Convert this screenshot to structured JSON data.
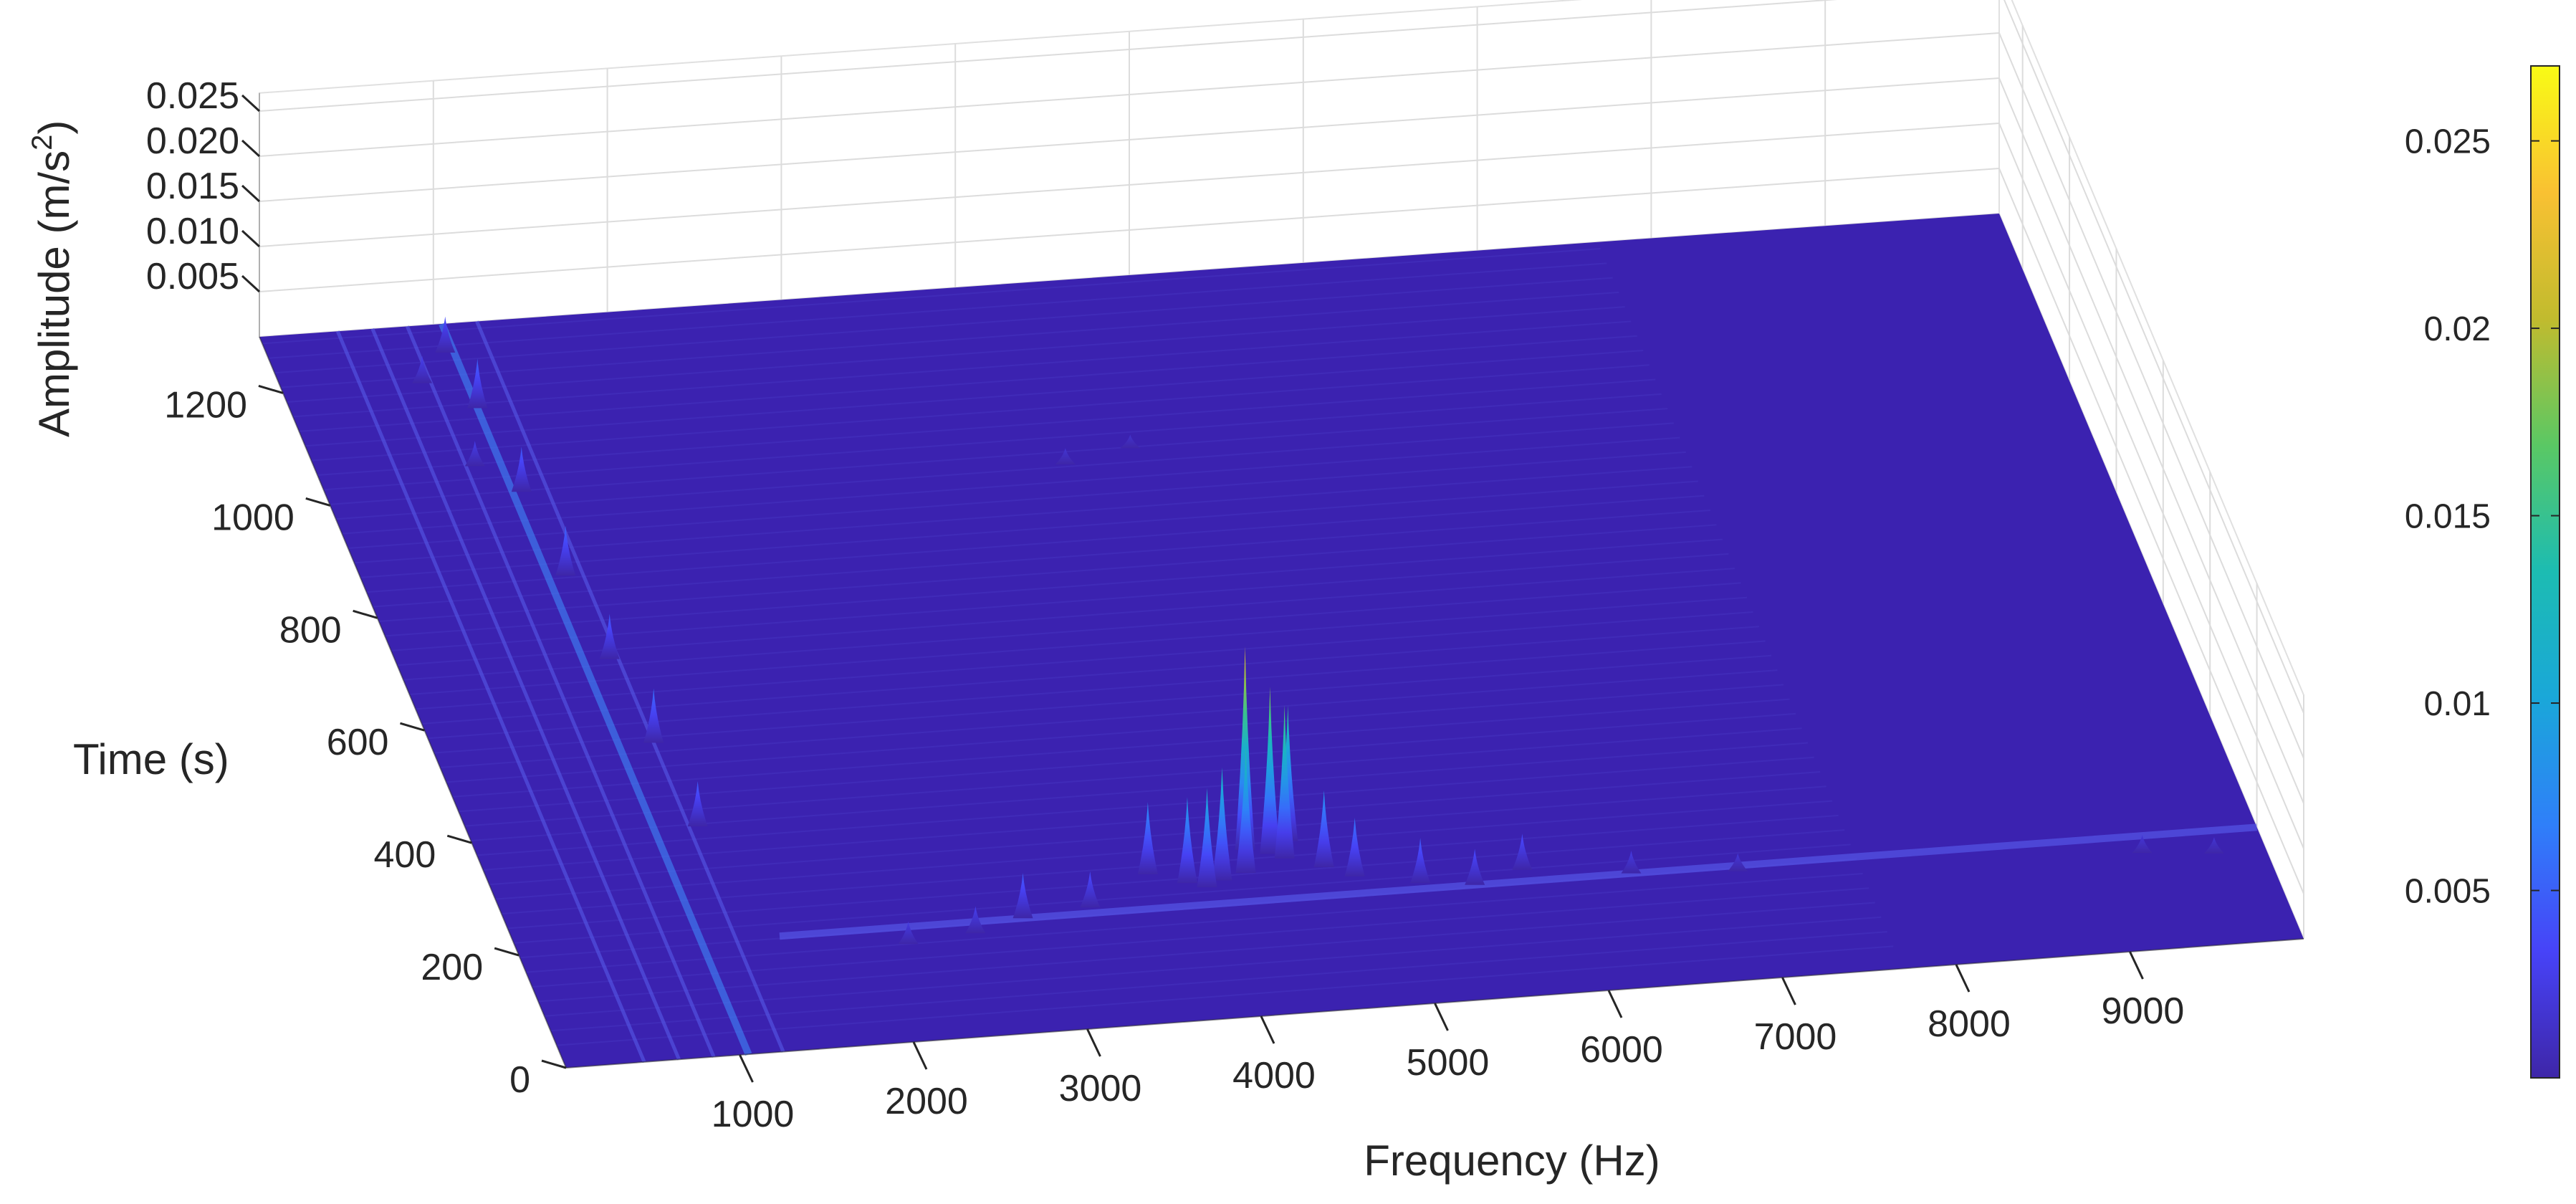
{
  "chart_data": {
    "type": "waterfall-3d",
    "title": "",
    "xlabel": "Frequency (Hz)",
    "ylabel": "Time (s)",
    "zlabel_base": "Amplitude (m/s",
    "zlabel_exp": "2",
    "zlabel_close": ")",
    "x_ticks": [
      "1000",
      "2000",
      "3000",
      "4000",
      "5000",
      "6000",
      "7000",
      "8000",
      "9000"
    ],
    "y_ticks": [
      "0",
      "200",
      "400",
      "600",
      "800",
      "1000",
      "1200"
    ],
    "z_ticks": [
      "0.005",
      "0.010",
      "0.015",
      "0.020",
      "0.025"
    ],
    "xlim": [
      0,
      10000
    ],
    "ylim": [
      0,
      1300
    ],
    "zlim": [
      0,
      0.027
    ],
    "colorbar_ticks": [
      "0.005",
      "0.01",
      "0.015",
      "0.02",
      "0.025"
    ],
    "colorbar_values": [
      0.005,
      0.01,
      0.015,
      0.02,
      0.025
    ],
    "colormap": [
      "#3e26a8",
      "#4743f8",
      "#2f7ff9",
      "#1aa7d9",
      "#1cbcb2",
      "#5ac864",
      "#c1bb2e",
      "#f9c132",
      "#f9fb15"
    ],
    "surface_base_color": "#3b22b0",
    "peaks": [
      {
        "f": 4300,
        "t": 290,
        "a": 0.0225
      },
      {
        "f": 4430,
        "t": 280,
        "a": 0.0185
      },
      {
        "f": 4500,
        "t": 270,
        "a": 0.017
      },
      {
        "f": 4560,
        "t": 300,
        "a": 0.015
      },
      {
        "f": 4250,
        "t": 250,
        "a": 0.014
      },
      {
        "f": 4100,
        "t": 240,
        "a": 0.0125
      },
      {
        "f": 4000,
        "t": 230,
        "a": 0.011
      },
      {
        "f": 3900,
        "t": 240,
        "a": 0.0095
      },
      {
        "f": 4700,
        "t": 250,
        "a": 0.0085
      },
      {
        "f": 3700,
        "t": 260,
        "a": 0.008
      },
      {
        "f": 4850,
        "t": 230,
        "a": 0.0065
      },
      {
        "f": 5200,
        "t": 210,
        "a": 0.005
      },
      {
        "f": 5500,
        "t": 200,
        "a": 0.004
      },
      {
        "f": 5800,
        "t": 220,
        "a": 0.004
      },
      {
        "f": 3300,
        "t": 210,
        "a": 0.004
      },
      {
        "f": 2900,
        "t": 200,
        "a": 0.005
      },
      {
        "f": 2600,
        "t": 180,
        "a": 0.003
      },
      {
        "f": 2200,
        "t": 170,
        "a": 0.0025
      },
      {
        "f": 6400,
        "t": 200,
        "a": 0.0025
      },
      {
        "f": 7000,
        "t": 190,
        "a": 0.002
      },
      {
        "f": 9300,
        "t": 170,
        "a": 0.002
      },
      {
        "f": 9700,
        "t": 160,
        "a": 0.0018
      },
      {
        "f": 1000,
        "t": 1250,
        "a": 0.004
      },
      {
        "f": 1050,
        "t": 1150,
        "a": 0.0055
      },
      {
        "f": 1100,
        "t": 1000,
        "a": 0.005
      },
      {
        "f": 1150,
        "t": 850,
        "a": 0.0055
      },
      {
        "f": 1200,
        "t": 700,
        "a": 0.005
      },
      {
        "f": 1250,
        "t": 550,
        "a": 0.006
      },
      {
        "f": 1300,
        "t": 400,
        "a": 0.005
      },
      {
        "f": 800,
        "t": 1200,
        "a": 0.003
      },
      {
        "f": 900,
        "t": 1050,
        "a": 0.0028
      },
      {
        "f": 4200,
        "t": 980,
        "a": 0.0018
      },
      {
        "f": 4600,
        "t": 1000,
        "a": 0.0015
      }
    ]
  }
}
